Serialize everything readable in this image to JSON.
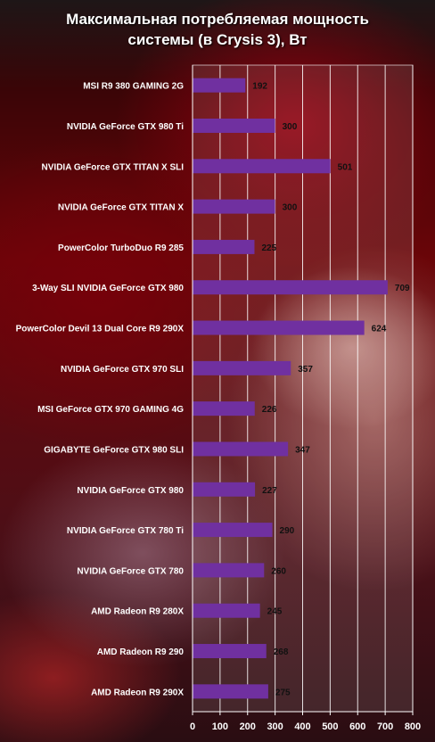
{
  "chart_data": {
    "type": "bar",
    "orientation": "horizontal",
    "title_lines": [
      "Максимальная потребляемая мощность",
      "системы (в Crysis 3), Вт"
    ],
    "categories": [
      "MSI R9 380 GAMING 2G",
      "NVIDIA GeForce GTX 980 Ti",
      "NVIDIA GeForce GTX TITAN X SLI",
      "NVIDIA GeForce GTX TITAN X",
      "PowerColor TurboDuo R9 285",
      "3-Way SLI NVIDIA GeForce GTX 980",
      "PowerColor Devil 13 Dual Core R9 290X",
      "NVIDIA GeForce GTX 970 SLI",
      "MSI GeForce GTX 970 GAMING 4G",
      "GIGABYTE GeForce GTX 980 SLI",
      "NVIDIA GeForce GTX 980",
      "NVIDIA GeForce GTX 780 Ti",
      "NVIDIA GeForce GTX 780",
      "AMD Radeon R9 280X",
      "AMD Radeon R9 290",
      "AMD Radeon R9 290X"
    ],
    "values": [
      192,
      300,
      501,
      300,
      225,
      709,
      624,
      357,
      226,
      347,
      227,
      290,
      260,
      245,
      268,
      275
    ],
    "xlim": [
      0,
      800
    ],
    "xticks": [
      0,
      100,
      200,
      300,
      400,
      500,
      600,
      700,
      800
    ],
    "grid": true,
    "legend": "none",
    "bar_color": "#7030a0"
  }
}
